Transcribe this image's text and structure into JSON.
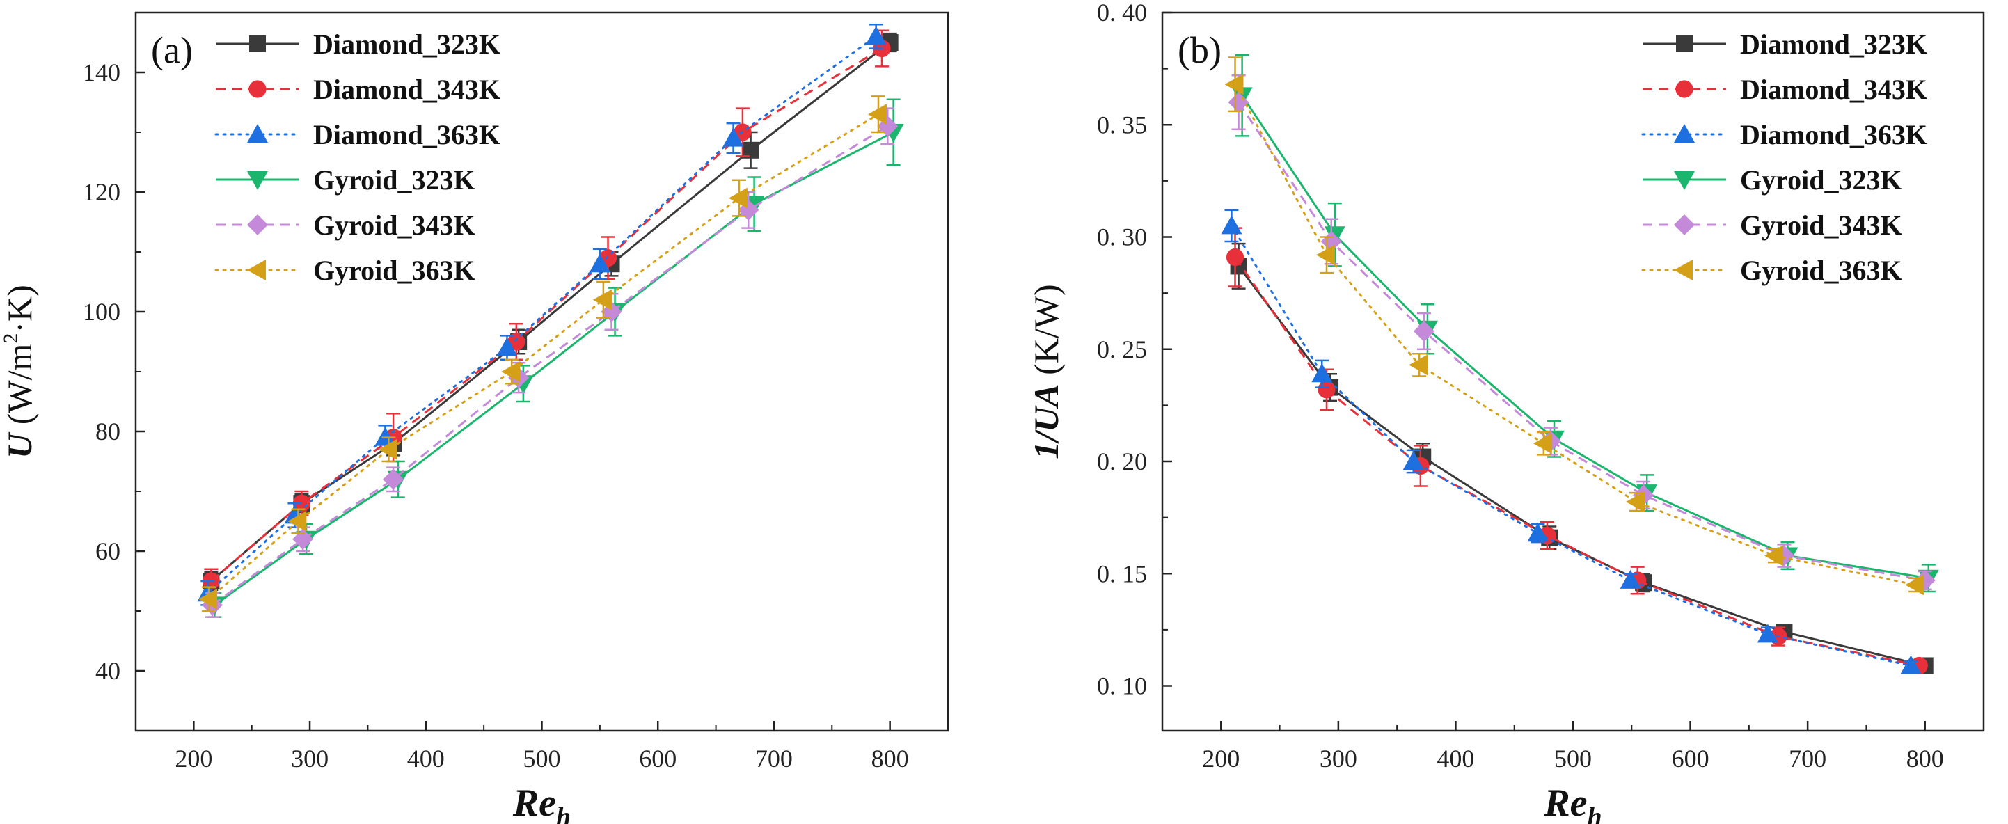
{
  "chart_data": [
    {
      "type": "line",
      "panel_label": "(a)",
      "xlabel": {
        "main": "Re",
        "sub": "h"
      },
      "ylabel": {
        "symbol": "U",
        "unit": "(W/m",
        "sup": "2",
        "unit_end": "·K)"
      },
      "xlim": [
        150,
        850
      ],
      "ylim": [
        30,
        150
      ],
      "xticks": [
        200,
        300,
        400,
        500,
        600,
        700,
        800
      ],
      "yticks": [
        40,
        60,
        80,
        100,
        120,
        140
      ],
      "legend_position": "top-left",
      "series": [
        {
          "name": "Diamond_323K",
          "color": "#3a3a3a",
          "marker": "square",
          "dash": "solid",
          "x": [
            215,
            293,
            372,
            480,
            560,
            680,
            800
          ],
          "y": [
            55,
            68,
            78,
            95,
            108,
            127,
            145
          ],
          "err": [
            1.5,
            1.5,
            2,
            2,
            2,
            3,
            1.5
          ]
        },
        {
          "name": "Diamond_343K",
          "color": "#e8303a",
          "marker": "circle",
          "dash": "dashed",
          "x": [
            215,
            293,
            372,
            478,
            557,
            673,
            793
          ],
          "y": [
            55,
            68,
            79,
            95,
            109,
            130,
            144
          ],
          "err": [
            2,
            2,
            4,
            3,
            3.5,
            4,
            3
          ]
        },
        {
          "name": "Diamond_363K",
          "color": "#1e6fe0",
          "marker": "triangle-up",
          "dash": "dotted",
          "x": [
            212,
            287,
            365,
            470,
            550,
            665,
            788
          ],
          "y": [
            53,
            66,
            79,
            94,
            108,
            129,
            146
          ],
          "err": [
            2,
            2,
            2,
            2,
            2.5,
            2.5,
            2
          ]
        },
        {
          "name": "Gyroid_323K",
          "color": "#1bb56e",
          "marker": "triangle-down",
          "dash": "solid",
          "x": [
            218,
            297,
            376,
            484,
            563,
            683,
            803
          ],
          "y": [
            51,
            62,
            72,
            88,
            100,
            118,
            130
          ],
          "err": [
            2,
            2.5,
            3,
            3,
            4,
            4.5,
            5.5
          ]
        },
        {
          "name": "Gyroid_343K",
          "color": "#c48ad9",
          "marker": "diamond",
          "dash": "dashed",
          "x": [
            216,
            294,
            372,
            480,
            560,
            678,
            798
          ],
          "y": [
            51,
            62,
            72,
            89,
            100,
            117,
            131
          ],
          "err": [
            2,
            2,
            2,
            2.5,
            3,
            3,
            3
          ]
        },
        {
          "name": "Gyroid_363K",
          "color": "#d4a017",
          "marker": "triangle-left",
          "dash": "dotted",
          "x": [
            213,
            290,
            368,
            474,
            553,
            670,
            790
          ],
          "y": [
            52,
            65,
            77,
            90,
            102,
            119,
            133
          ],
          "err": [
            2,
            2,
            2,
            2,
            3,
            3,
            3
          ]
        }
      ]
    },
    {
      "type": "line",
      "panel_label": "(b)",
      "xlabel": {
        "main": "Re",
        "sub": "h"
      },
      "ylabel": {
        "symbol": "1/UA",
        "unit": "(K/W)"
      },
      "xlim": [
        150,
        850
      ],
      "ylim": [
        0.08,
        0.4
      ],
      "xticks": [
        200,
        300,
        400,
        500,
        600,
        700,
        800
      ],
      "yticks": [
        0.1,
        0.15,
        0.2,
        0.25,
        0.3,
        0.35,
        0.4
      ],
      "ytick_labels": [
        "0. 10",
        "0. 15",
        "0. 20",
        "0. 25",
        "0. 30",
        "0. 35",
        "0. 40"
      ],
      "legend_position": "top-right",
      "series": [
        {
          "name": "Diamond_323K",
          "color": "#3a3a3a",
          "marker": "square",
          "dash": "solid",
          "x": [
            215,
            293,
            372,
            480,
            560,
            680,
            800
          ],
          "y": [
            0.287,
            0.233,
            0.202,
            0.166,
            0.146,
            0.124,
            0.109
          ],
          "err": [
            0.01,
            0.006,
            0.006,
            0.005,
            0.004,
            0.003,
            0.002
          ]
        },
        {
          "name": "Diamond_343K",
          "color": "#e8303a",
          "marker": "circle",
          "dash": "dashed",
          "x": [
            212,
            290,
            370,
            478,
            555,
            675,
            795
          ],
          "y": [
            0.291,
            0.232,
            0.198,
            0.167,
            0.147,
            0.122,
            0.109
          ],
          "err": [
            0.013,
            0.009,
            0.009,
            0.006,
            0.006,
            0.004,
            0.002
          ]
        },
        {
          "name": "Diamond_363K",
          "color": "#1e6fe0",
          "marker": "triangle-up",
          "dash": "dotted",
          "x": [
            209,
            286,
            364,
            470,
            549,
            666,
            788
          ],
          "y": [
            0.305,
            0.239,
            0.2,
            0.168,
            0.147,
            0.123,
            0.109
          ],
          "err": [
            0.007,
            0.006,
            0.005,
            0.004,
            0.003,
            0.003,
            0.002
          ]
        },
        {
          "name": "Gyroid_323K",
          "color": "#1bb56e",
          "marker": "triangle-down",
          "dash": "solid",
          "x": [
            218,
            297,
            376,
            484,
            563,
            683,
            803
          ],
          "y": [
            0.363,
            0.301,
            0.259,
            0.21,
            0.186,
            0.158,
            0.148
          ],
          "err": [
            0.018,
            0.014,
            0.011,
            0.008,
            0.008,
            0.006,
            0.006
          ]
        },
        {
          "name": "Gyroid_343K",
          "color": "#c48ad9",
          "marker": "diamond",
          "dash": "dashed",
          "x": [
            215,
            294,
            373,
            481,
            560,
            680,
            800
          ],
          "y": [
            0.36,
            0.298,
            0.258,
            0.209,
            0.185,
            0.158,
            0.147
          ],
          "err": [
            0.012,
            0.01,
            0.008,
            0.006,
            0.006,
            0.005,
            0.004
          ]
        },
        {
          "name": "Gyroid_363K",
          "color": "#d4a017",
          "marker": "triangle-left",
          "dash": "dotted",
          "x": [
            212,
            290,
            369,
            475,
            554,
            672,
            792
          ],
          "y": [
            0.368,
            0.292,
            0.243,
            0.208,
            0.182,
            0.158,
            0.145
          ],
          "err": [
            0.012,
            0.008,
            0.005,
            0.005,
            0.004,
            0.003,
            0.003
          ]
        }
      ]
    }
  ]
}
